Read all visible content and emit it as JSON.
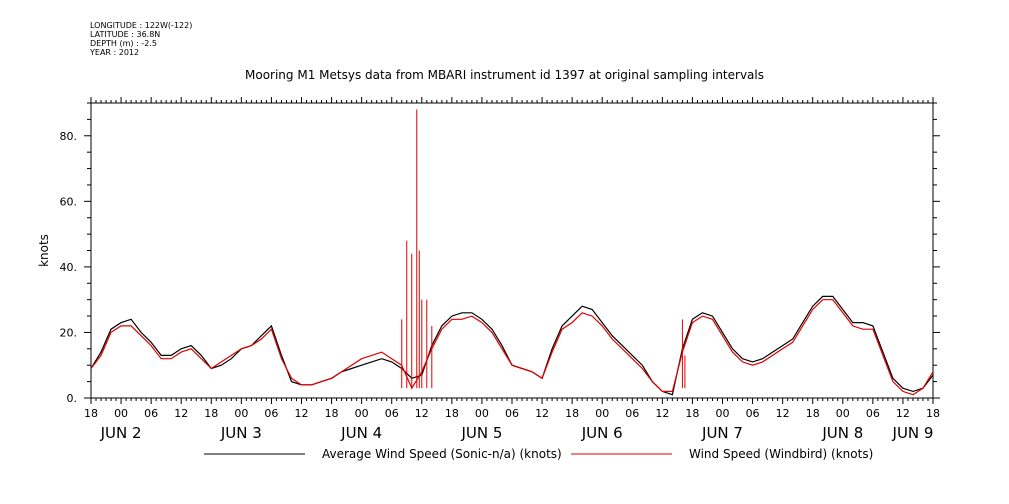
{
  "header": {
    "meta": [
      "LONGITUDE : 122W(-122)",
      "LATITUDE : 36.8N",
      "DEPTH (m) : -2.5",
      "YEAR : 2012"
    ],
    "title": "Mooring M1 Metsys data from MBARI instrument id 1397 at original sampling intervals"
  },
  "chart_data": {
    "type": "line",
    "title": "Mooring M1 Metsys data from MBARI instrument id 1397 at original sampling intervals",
    "xlabel": "",
    "ylabel": "knots",
    "xlim_hours": [
      0,
      168
    ],
    "x_unit": "hours from JUN 1 18:00, 2012",
    "ylim": [
      0,
      90
    ],
    "yticks": [
      0,
      20,
      40,
      60,
      80
    ],
    "ytick_labels": [
      "0.",
      "20.",
      "40.",
      "60.",
      "80."
    ],
    "xtick_hour_labels": [
      "18",
      "00",
      "06",
      "12",
      "18",
      "00",
      "06",
      "12",
      "18",
      "00",
      "06",
      "12",
      "18",
      "00",
      "06",
      "12",
      "18",
      "00",
      "06",
      "12",
      "18",
      "00",
      "06",
      "12",
      "18",
      "00",
      "06",
      "12",
      "18"
    ],
    "date_labels": [
      {
        "text": "JUN  2",
        "hour": 6
      },
      {
        "text": "JUN  3",
        "hour": 30
      },
      {
        "text": "JUN  4",
        "hour": 54
      },
      {
        "text": "JUN  5",
        "hour": 78
      },
      {
        "text": "JUN  6",
        "hour": 102
      },
      {
        "text": "JUN  7",
        "hour": 126
      },
      {
        "text": "JUN  8",
        "hour": 150
      },
      {
        "text": "JUN  9",
        "hour": 174
      }
    ],
    "series": [
      {
        "name": "Average Wind Speed (Sonic-n/a) (knots)",
        "color": "#000000",
        "x": [
          0,
          2,
          4,
          6,
          8,
          10,
          12,
          14,
          16,
          18,
          20,
          22,
          24,
          26,
          28,
          30,
          32,
          34,
          36,
          38,
          40,
          42,
          44,
          46,
          48,
          50,
          52,
          54,
          56,
          58,
          60,
          62,
          64,
          66,
          68,
          70,
          72,
          74,
          76,
          78,
          80,
          82,
          84,
          86,
          88,
          90,
          92,
          94,
          96,
          98,
          100,
          102,
          104,
          106,
          108,
          110,
          112,
          114,
          116,
          118,
          120,
          122,
          124,
          126,
          128,
          130,
          132,
          134,
          136,
          138,
          140,
          142,
          144,
          146,
          148,
          150,
          152,
          154,
          156,
          158,
          160,
          162,
          164,
          166,
          168
        ],
        "y": [
          9,
          14,
          21,
          23,
          24,
          20,
          17,
          13,
          13,
          15,
          16,
          13,
          9,
          10,
          12,
          15,
          16,
          19,
          22,
          13,
          5,
          4,
          4,
          5,
          6,
          8,
          9,
          10,
          11,
          12,
          11,
          9,
          6,
          7,
          16,
          22,
          25,
          26,
          26,
          24,
          21,
          16,
          10,
          9,
          8,
          6,
          15,
          22,
          25,
          28,
          27,
          23,
          19,
          16,
          13,
          10,
          5,
          2,
          1,
          15,
          24,
          26,
          25,
          20,
          15,
          12,
          11,
          12,
          14,
          16,
          18,
          23,
          28,
          31,
          31,
          27,
          23,
          23,
          22,
          14,
          6,
          3,
          2,
          3,
          7
        ]
      },
      {
        "name": "Wind Speed (Windbird) (knots)",
        "color": "#e00000",
        "x": [
          0,
          2,
          4,
          6,
          8,
          10,
          12,
          14,
          16,
          18,
          20,
          22,
          24,
          26,
          28,
          30,
          32,
          34,
          36,
          38,
          40,
          42,
          44,
          46,
          48,
          50,
          52,
          54,
          56,
          58,
          60,
          62,
          64,
          66,
          68,
          70,
          72,
          74,
          76,
          78,
          80,
          82,
          84,
          86,
          88,
          90,
          92,
          94,
          96,
          98,
          100,
          102,
          104,
          106,
          108,
          110,
          112,
          114,
          116,
          118,
          120,
          122,
          124,
          126,
          128,
          130,
          132,
          134,
          136,
          138,
          140,
          142,
          144,
          146,
          148,
          150,
          152,
          154,
          156,
          158,
          160,
          162,
          164,
          166,
          168
        ],
        "y": [
          9,
          13,
          20,
          22,
          22,
          19,
          16,
          12,
          12,
          14,
          15,
          12,
          9,
          11,
          13,
          15,
          16,
          18,
          21,
          12,
          6,
          4,
          4,
          5,
          6,
          8,
          10,
          12,
          13,
          14,
          12,
          10,
          3,
          8,
          15,
          21,
          24,
          24,
          25,
          23,
          20,
          15,
          10,
          9,
          8,
          6,
          14,
          21,
          23,
          26,
          25,
          22,
          18,
          15,
          12,
          9,
          5,
          2,
          2,
          14,
          23,
          25,
          24,
          19,
          14,
          11,
          10,
          11,
          13,
          15,
          17,
          22,
          27,
          30,
          30,
          26,
          22,
          21,
          21,
          13,
          5,
          2,
          1,
          3,
          8
        ],
        "spikes": [
          {
            "hour": 62,
            "value": 24
          },
          {
            "hour": 63,
            "value": 48
          },
          {
            "hour": 64,
            "value": 44
          },
          {
            "hour": 65,
            "value": 88
          },
          {
            "hour": 65.5,
            "value": 45
          },
          {
            "hour": 66,
            "value": 30
          },
          {
            "hour": 67,
            "value": 30
          },
          {
            "hour": 68,
            "value": 22
          },
          {
            "hour": 118,
            "value": 24
          },
          {
            "hour": 118.5,
            "value": 13
          }
        ]
      }
    ],
    "legend": [
      {
        "label": "Average Wind Speed (Sonic-n/a) (knots)",
        "color": "#000000"
      },
      {
        "label": "Wind Speed (Windbird) (knots)",
        "color": "#e00000"
      }
    ],
    "legend_placement": "bottom",
    "grid": false
  }
}
